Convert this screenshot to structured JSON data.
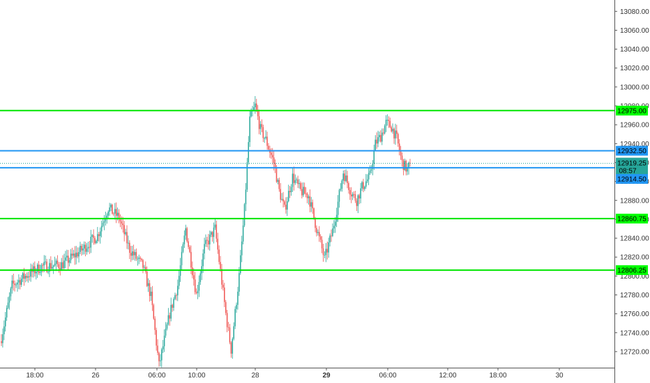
{
  "chart_data": {
    "type": "candlestick",
    "instrument_unit": "price",
    "x_tick_labels": [
      "18:00",
      "26",
      "06:00",
      "10:00",
      "28",
      "29",
      "06:00",
      "12:00",
      "18:00",
      "30"
    ],
    "y_ticks": [
      12720,
      12740,
      12760,
      12780,
      12800,
      12820,
      12840,
      12860,
      12880,
      12900,
      12920,
      12940,
      12960,
      12980,
      13000,
      13020,
      13040,
      13060,
      13080
    ],
    "y_tick_labels": [
      "12720.00",
      "12740.00",
      "12760.00",
      "12780.00",
      "12800.00",
      "12820.00",
      "12840.00",
      "12860.00",
      "12880.00",
      "12900.00",
      "12920.00",
      "12940.00",
      "12960.00",
      "12980.00",
      "13000.00",
      "13020.00",
      "13040.00",
      "13060.00",
      "13080.00"
    ],
    "ylim": [
      12703,
      13092
    ],
    "grid": false,
    "levels": [
      {
        "value": 12975.0,
        "label": "12975.00",
        "color": "#00e600"
      },
      {
        "value": 12932.5,
        "label": "12932.50",
        "color": "#2196f3"
      },
      {
        "value": 12914.5,
        "label": "12914.50",
        "color": "#2196f3"
      },
      {
        "value": 12860.75,
        "label": "12860.75",
        "color": "#00e600"
      },
      {
        "value": 12806.25,
        "label": "12806.25",
        "color": "#00e600"
      }
    ],
    "last_price": {
      "value": 12919.25,
      "label": "12919.25",
      "countdown": "08:57",
      "color": "#26a69a"
    },
    "candle_colors": {
      "up": "#26a69a",
      "down": "#ef5350"
    },
    "key_points": [
      [
        0,
        12735
      ],
      [
        8,
        12790
      ],
      [
        18,
        12800
      ],
      [
        30,
        12810
      ],
      [
        45,
        12812
      ],
      [
        55,
        12822
      ],
      [
        62,
        12830
      ],
      [
        72,
        12843
      ],
      [
        80,
        12872
      ],
      [
        88,
        12862
      ],
      [
        96,
        12828
      ],
      [
        106,
        12810
      ],
      [
        112,
        12778
      ],
      [
        118,
        12705
      ],
      [
        126,
        12760
      ],
      [
        132,
        12790
      ],
      [
        138,
        12850
      ],
      [
        146,
        12780
      ],
      [
        152,
        12830
      ],
      [
        160,
        12850
      ],
      [
        168,
        12760
      ],
      [
        172,
        12722
      ],
      [
        178,
        12800
      ],
      [
        182,
        12870
      ],
      [
        186,
        12965
      ],
      [
        190,
        12980
      ],
      [
        194,
        12955
      ],
      [
        198,
        12944
      ],
      [
        204,
        12920
      ],
      [
        208,
        12890
      ],
      [
        212,
        12870
      ],
      [
        218,
        12905
      ],
      [
        224,
        12890
      ],
      [
        230,
        12885
      ],
      [
        236,
        12850
      ],
      [
        242,
        12818
      ],
      [
        248,
        12848
      ],
      [
        252,
        12878
      ],
      [
        256,
        12910
      ],
      [
        262,
        12888
      ],
      [
        266,
        12880
      ],
      [
        270,
        12894
      ],
      [
        276,
        12906
      ],
      [
        280,
        12940
      ],
      [
        284,
        12948
      ],
      [
        288,
        12962
      ],
      [
        292,
        12958
      ],
      [
        296,
        12945
      ],
      [
        300,
        12920
      ],
      [
        304,
        12912
      ],
      [
        306,
        12919.25
      ]
    ]
  }
}
